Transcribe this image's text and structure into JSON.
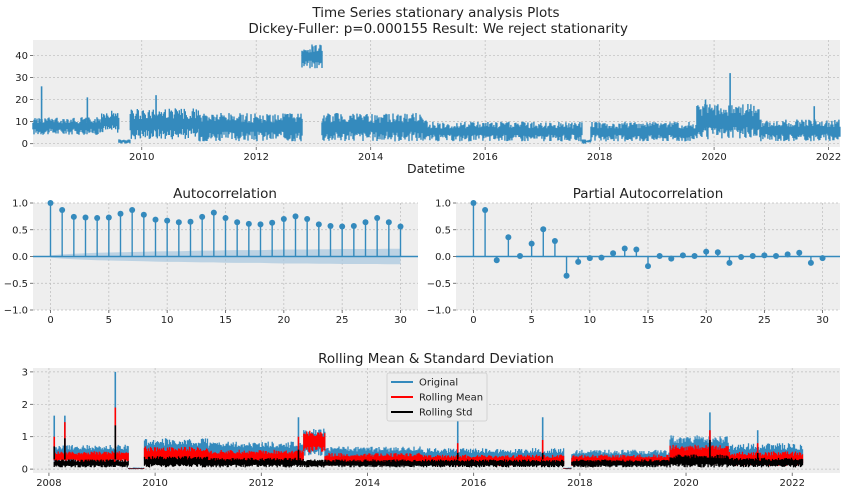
{
  "figure": {
    "title_line1": "Time Series stationary analysis Plots",
    "title_line2": " Dickey-Fuller: p=0.000155 Result: We reject stationarity"
  },
  "colors": {
    "panel_bg": "#eeeeee",
    "grid": "#bcbcbc",
    "series_blue": "#348abd",
    "rolling_mean": "#ff0000",
    "rolling_std": "#000000",
    "conf_band": "#a6c6de"
  },
  "chart_data": [
    {
      "type": "line",
      "name": "timeseries",
      "title": "",
      "xlabel": "Datetime",
      "ylabel": "",
      "xlim": [
        2008.1,
        2022.2
      ],
      "ylim": [
        -1.5,
        47
      ],
      "x_ticks": [
        2010,
        2012,
        2014,
        2016,
        2018,
        2020,
        2022
      ],
      "y_ticks": [
        0,
        10,
        20,
        30,
        40
      ],
      "x_tick_labels": [
        "2010",
        "2012",
        "2014",
        "2016",
        "2018",
        "2020",
        "2022"
      ],
      "y_tick_labels": [
        "0",
        "10",
        "20",
        "30",
        "40"
      ],
      "grid": true,
      "segments": [
        {
          "start": 2008.1,
          "end": 2009.3,
          "low": 4,
          "high": 12
        },
        {
          "start": 2009.3,
          "end": 2009.6,
          "low": 5,
          "high": 15
        },
        {
          "start": 2009.6,
          "end": 2009.8,
          "low": 0,
          "high": 2
        },
        {
          "start": 2009.8,
          "end": 2011.0,
          "low": 2,
          "high": 16
        },
        {
          "start": 2011.0,
          "end": 2012.8,
          "low": 1,
          "high": 14
        },
        {
          "start": 2012.8,
          "end": 2013.15,
          "low": 34,
          "high": 45
        },
        {
          "start": 2013.15,
          "end": 2015.0,
          "low": 1,
          "high": 14
        },
        {
          "start": 2015.0,
          "end": 2017.7,
          "low": 1,
          "high": 10
        },
        {
          "start": 2017.7,
          "end": 2017.85,
          "low": 0,
          "high": 2
        },
        {
          "start": 2017.85,
          "end": 2019.7,
          "low": 1,
          "high": 10
        },
        {
          "start": 2019.7,
          "end": 2020.8,
          "low": 2,
          "high": 18
        },
        {
          "start": 2020.8,
          "end": 2022.2,
          "low": 1,
          "high": 11
        }
      ],
      "spikes": [
        {
          "x": 2008.25,
          "y": 26
        },
        {
          "x": 2009.05,
          "y": 21
        },
        {
          "x": 2010.25,
          "y": 22
        },
        {
          "x": 2019.85,
          "y": 20
        },
        {
          "x": 2020.28,
          "y": 32
        },
        {
          "x": 2021.75,
          "y": 17
        }
      ]
    },
    {
      "type": "bar",
      "name": "acf",
      "title": "Autocorrelation",
      "xlim": [
        -1.5,
        31.5
      ],
      "ylim": [
        -1.0,
        1.0
      ],
      "x_ticks": [
        0,
        5,
        10,
        15,
        20,
        25,
        30
      ],
      "y_ticks": [
        -1.0,
        -0.5,
        0.0,
        0.5,
        1.0
      ],
      "x_tick_labels": [
        "0",
        "5",
        "10",
        "15",
        "20",
        "25",
        "30"
      ],
      "y_tick_labels": [
        "−1.0",
        "−0.5",
        "0.0",
        "0.5",
        "1.0"
      ],
      "lags": [
        0,
        1,
        2,
        3,
        4,
        5,
        6,
        7,
        8,
        9,
        10,
        11,
        12,
        13,
        14,
        15,
        16,
        17,
        18,
        19,
        20,
        21,
        22,
        23,
        24,
        25,
        26,
        27,
        28,
        29,
        30
      ],
      "values": [
        1.0,
        0.87,
        0.74,
        0.73,
        0.72,
        0.73,
        0.8,
        0.87,
        0.78,
        0.69,
        0.67,
        0.64,
        0.65,
        0.74,
        0.82,
        0.72,
        0.64,
        0.61,
        0.6,
        0.63,
        0.7,
        0.75,
        0.7,
        0.6,
        0.57,
        0.56,
        0.57,
        0.64,
        0.72,
        0.64,
        0.56
      ],
      "confint": [
        0.02,
        0.04,
        0.05,
        0.06,
        0.07,
        0.075,
        0.08,
        0.085,
        0.09,
        0.095,
        0.1,
        0.1,
        0.105,
        0.11,
        0.11,
        0.115,
        0.12,
        0.12,
        0.12,
        0.125,
        0.13,
        0.13,
        0.13,
        0.135,
        0.135,
        0.14,
        0.14,
        0.14,
        0.14,
        0.145,
        0.145
      ]
    },
    {
      "type": "bar",
      "name": "pacf",
      "title": "Partial Autocorrelation",
      "xlim": [
        -1.5,
        31.5
      ],
      "ylim": [
        -1.0,
        1.0
      ],
      "x_ticks": [
        0,
        5,
        10,
        15,
        20,
        25,
        30
      ],
      "y_ticks": [
        -1.0,
        -0.5,
        0.0,
        0.5,
        1.0
      ],
      "x_tick_labels": [
        "0",
        "5",
        "10",
        "15",
        "20",
        "25",
        "30"
      ],
      "y_tick_labels": [
        "−1.0",
        "−0.5",
        "0.0",
        "0.5",
        "1.0"
      ],
      "lags": [
        0,
        1,
        2,
        3,
        4,
        5,
        6,
        7,
        8,
        9,
        10,
        11,
        12,
        13,
        14,
        15,
        16,
        17,
        18,
        19,
        20,
        21,
        22,
        23,
        24,
        25,
        26,
        27,
        28,
        29,
        30
      ],
      "values": [
        1.0,
        0.87,
        -0.07,
        0.36,
        0.01,
        0.24,
        0.51,
        0.29,
        -0.36,
        -0.1,
        -0.03,
        -0.02,
        0.06,
        0.15,
        0.13,
        -0.18,
        0.01,
        -0.04,
        0.02,
        0.01,
        0.09,
        0.08,
        -0.12,
        -0.01,
        0.01,
        0.02,
        0.01,
        0.04,
        0.07,
        -0.12,
        -0.03
      ]
    },
    {
      "type": "line",
      "name": "rolling",
      "title": "Rolling Mean & Standard Deviation",
      "xlim": [
        2007.7,
        2022.9
      ],
      "ylim": [
        -0.12,
        3.12
      ],
      "x_ticks": [
        2008,
        2010,
        2012,
        2014,
        2016,
        2018,
        2020,
        2022
      ],
      "y_ticks": [
        0,
        1,
        2,
        3
      ],
      "x_tick_labels": [
        "2008",
        "2010",
        "2012",
        "2014",
        "2016",
        "2018",
        "2020",
        "2022"
      ],
      "y_tick_labels": [
        "0",
        "1",
        "2",
        "3"
      ],
      "legend_position": "upper-center",
      "legend": [
        "Original",
        "Rolling Mean",
        "Rolling Std"
      ],
      "segments": [
        {
          "start": 2008.1,
          "end": 2009.5,
          "orig": [
            0.2,
            0.75
          ],
          "mean": [
            0.2,
            0.55
          ],
          "std": [
            0.05,
            0.3
          ]
        },
        {
          "start": 2009.5,
          "end": 2009.8,
          "orig": [
            0.0,
            0.05
          ],
          "mean": [
            0.0,
            0.03
          ],
          "std": [
            0.0,
            0.02
          ]
        },
        {
          "start": 2009.8,
          "end": 2011.0,
          "orig": [
            0.2,
            0.95
          ],
          "mean": [
            0.2,
            0.7
          ],
          "std": [
            0.05,
            0.4
          ]
        },
        {
          "start": 2011.0,
          "end": 2012.8,
          "orig": [
            0.2,
            0.85
          ],
          "mean": [
            0.15,
            0.6
          ],
          "std": [
            0.05,
            0.35
          ]
        },
        {
          "start": 2012.8,
          "end": 2013.2,
          "orig": [
            0.4,
            1.25
          ],
          "mean": [
            0.5,
            1.2
          ],
          "std": [
            0.05,
            0.3
          ]
        },
        {
          "start": 2013.2,
          "end": 2015.0,
          "orig": [
            0.15,
            0.7
          ],
          "mean": [
            0.1,
            0.5
          ],
          "std": [
            0.05,
            0.3
          ]
        },
        {
          "start": 2015.0,
          "end": 2017.7,
          "orig": [
            0.1,
            0.65
          ],
          "mean": [
            0.1,
            0.45
          ],
          "std": [
            0.05,
            0.3
          ]
        },
        {
          "start": 2017.7,
          "end": 2017.85,
          "orig": [
            0.0,
            0.05
          ],
          "mean": [
            0.0,
            0.03
          ],
          "std": [
            0.0,
            0.02
          ]
        },
        {
          "start": 2017.85,
          "end": 2019.7,
          "orig": [
            0.1,
            0.6
          ],
          "mean": [
            0.1,
            0.45
          ],
          "std": [
            0.05,
            0.3
          ]
        },
        {
          "start": 2019.7,
          "end": 2020.8,
          "orig": [
            0.2,
            1.05
          ],
          "mean": [
            0.15,
            0.75
          ],
          "std": [
            0.05,
            0.45
          ]
        },
        {
          "start": 2020.8,
          "end": 2022.2,
          "orig": [
            0.1,
            0.8
          ],
          "mean": [
            0.1,
            0.55
          ],
          "std": [
            0.05,
            0.35
          ]
        }
      ],
      "spikes": [
        {
          "x": 2008.1,
          "orig": 1.65,
          "mean": 1.0,
          "std": 0.7
        },
        {
          "x": 2008.3,
          "orig": 1.65,
          "mean": 1.45,
          "std": 0.95
        },
        {
          "x": 2009.25,
          "orig": 3.0,
          "mean": 1.9,
          "std": 1.35
        },
        {
          "x": 2012.7,
          "orig": 1.6,
          "mean": 1.0,
          "std": 0.6
        },
        {
          "x": 2015.7,
          "orig": 1.5,
          "mean": 0.8,
          "std": 0.5
        },
        {
          "x": 2017.3,
          "orig": 1.6,
          "mean": 0.9,
          "std": 0.5
        },
        {
          "x": 2020.45,
          "orig": 1.75,
          "mean": 1.2,
          "std": 0.9
        },
        {
          "x": 2021.35,
          "orig": 1.2,
          "mean": 0.8,
          "std": 0.5
        }
      ]
    }
  ]
}
